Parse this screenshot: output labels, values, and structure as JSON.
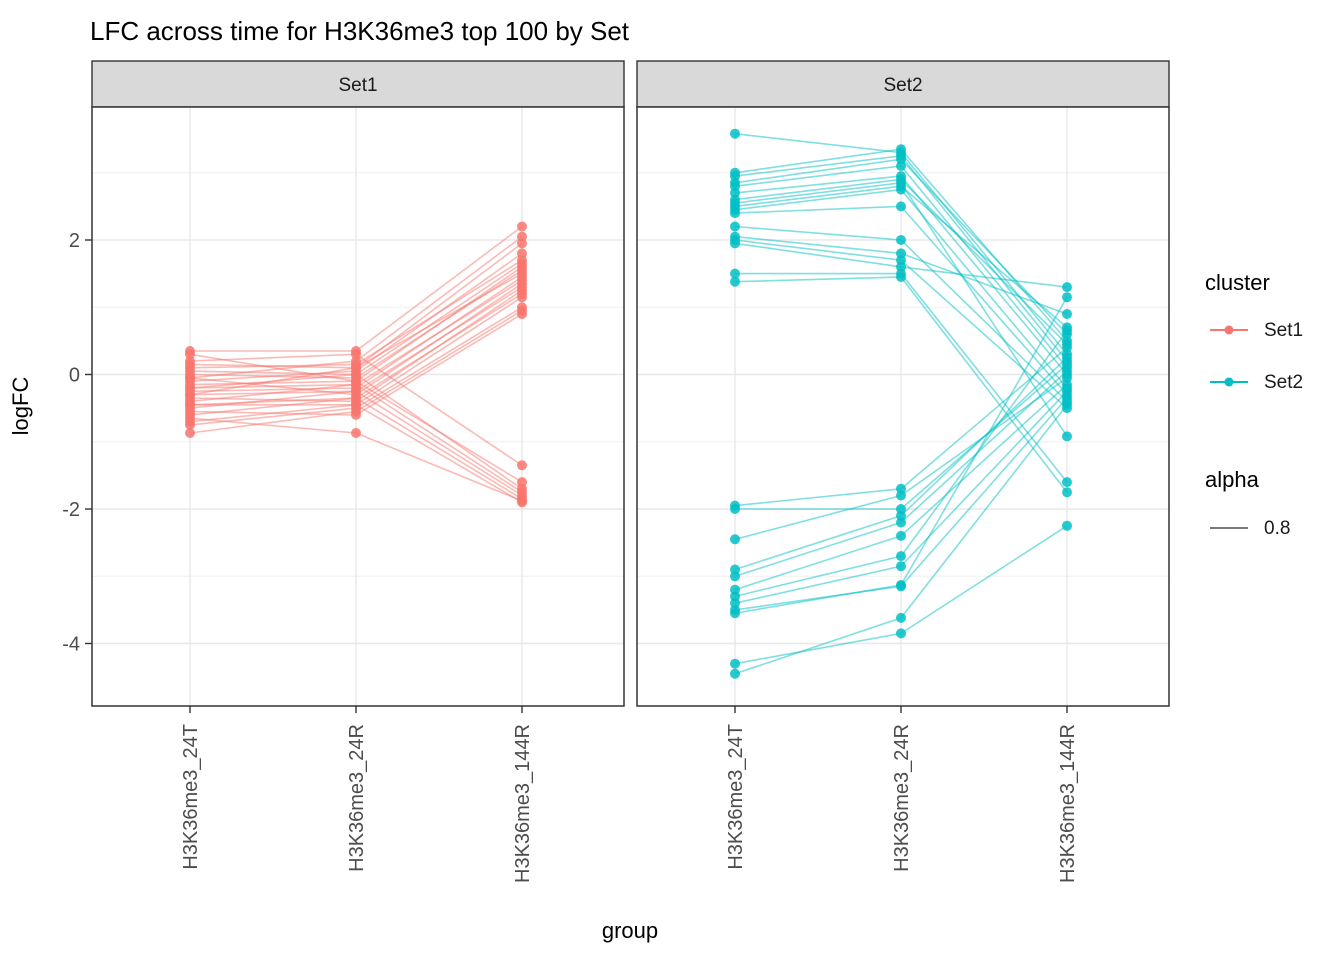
{
  "title": "LFC across time for H3K36me3 top 100 by Set",
  "axes": {
    "x_label": "group",
    "y_label": "logFC"
  },
  "legend": {
    "cluster": {
      "title": "cluster",
      "items": [
        {
          "label": "Set1",
          "color": "#F8766D"
        },
        {
          "label": "Set2",
          "color": "#00BFC4"
        }
      ]
    },
    "alpha": {
      "title": "alpha",
      "items": [
        {
          "label": "0.8",
          "color": "#666666"
        }
      ]
    }
  },
  "chart_data": {
    "type": "line",
    "title": "LFC across time for H3K36me3 top 100 by Set",
    "xlabel": "group",
    "ylabel": "logFC",
    "faceted_by": "Set",
    "facet_names": [
      "Set1",
      "Set2"
    ],
    "categories": [
      "H3K36me3_24T",
      "H3K36me3_24R",
      "H3K36me3_144R"
    ],
    "ylim": [
      -4.93,
      3.98
    ],
    "y_major_ticks": [
      2,
      0,
      -2,
      -4
    ],
    "y_minor_gridlines": [
      3,
      1,
      -1,
      -3
    ],
    "point_alpha": 0.8,
    "line_alpha": 0.8,
    "grid": true,
    "legend_position": "right",
    "facets": [
      {
        "name": "Set1",
        "color": "#F8766D",
        "series": [
          [
            0.35,
            0.35,
            2.2
          ],
          [
            -0.05,
            0.2,
            2.05
          ],
          [
            0.15,
            0.1,
            1.95
          ],
          [
            -0.1,
            0.05,
            1.8
          ],
          [
            0.1,
            0.15,
            1.7
          ],
          [
            -0.2,
            0.0,
            1.65
          ],
          [
            -0.15,
            -0.1,
            1.6
          ],
          [
            0.0,
            -0.05,
            1.55
          ],
          [
            -0.3,
            0.1,
            1.5
          ],
          [
            -0.25,
            -0.2,
            1.45
          ],
          [
            -0.4,
            -0.15,
            1.4
          ],
          [
            -0.05,
            -0.3,
            1.35
          ],
          [
            -0.5,
            -0.25,
            1.3
          ],
          [
            -0.35,
            -0.4,
            1.25
          ],
          [
            -0.6,
            -0.35,
            1.2
          ],
          [
            -0.45,
            -0.45,
            1.15
          ],
          [
            -0.75,
            -0.5,
            1.0
          ],
          [
            -0.87,
            -0.55,
            0.95
          ],
          [
            -0.55,
            -0.6,
            0.9
          ],
          [
            0.2,
            0.3,
            -1.35
          ],
          [
            0.3,
            -0.1,
            -1.6
          ],
          [
            0.05,
            0.0,
            -1.7
          ],
          [
            -0.2,
            -0.15,
            -1.75
          ],
          [
            -0.3,
            -0.25,
            -1.8
          ],
          [
            -0.45,
            -0.35,
            -1.85
          ],
          [
            -0.65,
            -0.87,
            -1.88
          ],
          [
            -0.7,
            -0.45,
            -1.9
          ]
        ]
      },
      {
        "name": "Set2",
        "color": "#00BFC4",
        "series": [
          [
            3.58,
            3.3,
            0.3
          ],
          [
            3.0,
            3.35,
            0.5
          ],
          [
            2.95,
            3.25,
            0.2
          ],
          [
            2.85,
            3.2,
            0.6
          ],
          [
            2.8,
            3.1,
            0.1
          ],
          [
            2.7,
            2.95,
            0.0
          ],
          [
            2.6,
            2.9,
            0.45
          ],
          [
            2.55,
            2.85,
            -0.92
          ],
          [
            2.5,
            2.8,
            0.7
          ],
          [
            2.45,
            2.75,
            -0.2
          ],
          [
            2.4,
            2.5,
            -0.3
          ],
          [
            2.2,
            2.0,
            -0.4
          ],
          [
            2.05,
            1.8,
            0.9
          ],
          [
            2.0,
            1.7,
            -0.5
          ],
          [
            1.95,
            1.6,
            1.3
          ],
          [
            1.5,
            1.5,
            -1.6
          ],
          [
            1.38,
            1.45,
            -1.75
          ],
          [
            -1.95,
            -1.7,
            0.4
          ],
          [
            -2.0,
            -2.0,
            0.15
          ],
          [
            -2.45,
            -1.8,
            -0.05
          ],
          [
            -2.9,
            -2.1,
            0.25
          ],
          [
            -3.0,
            -2.2,
            0.05
          ],
          [
            -3.2,
            -2.4,
            -0.15
          ],
          [
            -3.3,
            -2.7,
            0.65
          ],
          [
            -3.4,
            -2.85,
            -0.25
          ],
          [
            -3.5,
            -3.15,
            -0.35
          ],
          [
            -3.55,
            -3.13,
            1.15
          ],
          [
            -4.3,
            -3.85,
            -2.25
          ],
          [
            -4.45,
            -3.62,
            -0.45
          ]
        ]
      }
    ]
  }
}
